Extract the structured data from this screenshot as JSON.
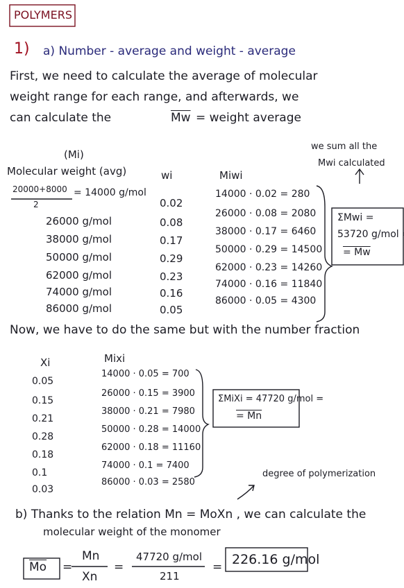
{
  "header": {
    "title": "POLYMERS"
  },
  "part_a": {
    "number": "1)",
    "heading": "a) Number - average and weight - average",
    "intro": [
      "First, we need to calculate the average of molecular",
      "weight range for each range, and afterwards, we",
      "can calculate the"
    ],
    "intro_symbol": "Mw",
    "intro_end": "= weight average"
  },
  "weight_table": {
    "mi_label": "(Mi)",
    "headers": [
      "Molecular weight (avg)",
      "wi",
      "Miwi"
    ],
    "first_numerator": "20000+8000",
    "first_denominator": "2",
    "first_result": "= 14000 g/mol",
    "rows": [
      [
        "",
        "0.02",
        "14000 · 0.02 = 280"
      ],
      [
        "26000 g/mol",
        "0.08",
        "26000 · 0.08 = 2080"
      ],
      [
        "38000 g/mol",
        "0.17",
        "38000 · 0.17 = 6460"
      ],
      [
        "50000 g/mol",
        "0.29",
        "50000 · 0.29 = 14500"
      ],
      [
        "62000 g/mol",
        "0.23",
        "62000 · 0.23 = 14260"
      ],
      [
        "74000 g/mol",
        "0.16",
        "74000 · 0.16 = 11840"
      ],
      [
        "86000 g/mol",
        "0.05",
        "86000 · 0.05 = 4300"
      ]
    ],
    "note": [
      "we sum all the",
      "Mwi calculated"
    ],
    "box": [
      "ΣMwi =",
      "53720 g/mol =",
      "= Mw"
    ]
  },
  "number_table": {
    "intro": "Now, we have to do the same but with the number fraction",
    "headers": [
      "Xi",
      "Mixi"
    ],
    "rows": [
      [
        "0.05",
        "14000 · 0.05 = 700"
      ],
      [
        "0.15",
        "26000 · 0.15 = 3900"
      ],
      [
        "0.21",
        "38000 · 0.21 = 7980"
      ],
      [
        "0.28",
        "50000 · 0.28 = 14000"
      ],
      [
        "0.18",
        "62000 · 0.18 = 11160"
      ],
      [
        "0.1",
        "74000 · 0.1 = 7400"
      ],
      [
        "0.03",
        "86000 · 0.03 = 2580"
      ]
    ],
    "box": [
      "ΣMiXi = 47720 g/mol =",
      "= Mn"
    ],
    "note": "degree of polymerization"
  },
  "part_b": {
    "lines": [
      "b) Thanks to the relation  Mn = MoXn , we can calculate the",
      "molecular weight of the monomer"
    ],
    "equation": {
      "lhs": "Mo",
      "eq1": "=",
      "num1": "Mn",
      "den1": "Xn",
      "eq2": "=",
      "num2": "47720 g/mol",
      "den2": "211",
      "eq3": "=",
      "result": "226.16 g/mol"
    }
  }
}
